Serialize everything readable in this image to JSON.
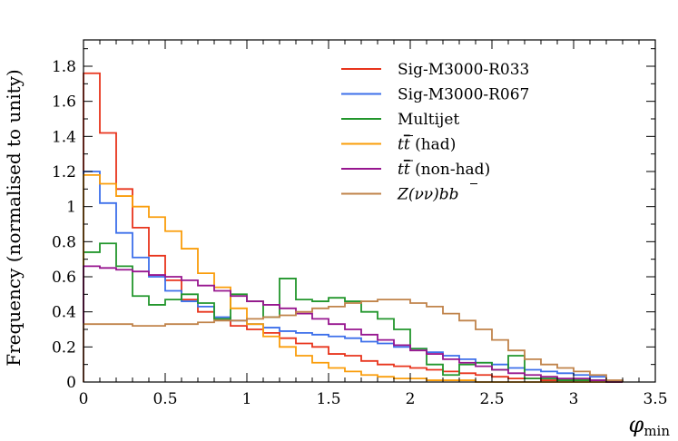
{
  "chart_data": {
    "type": "line",
    "step": true,
    "xlabel": "φ",
    "xlabel_sub": "min",
    "ylabel": "Frequency (normalised to unity)",
    "xlim": [
      0,
      3.5
    ],
    "ylim": [
      0,
      1.95
    ],
    "xticks": [
      0,
      0.5,
      1,
      1.5,
      2,
      2.5,
      3,
      3.5
    ],
    "xtick_labels": [
      "0",
      "0.5",
      "1",
      "1.5",
      "2",
      "2.5",
      "3",
      "3.5"
    ],
    "yticks": [
      0,
      0.2,
      0.4,
      0.6,
      0.8,
      1,
      1.2,
      1.4,
      1.6,
      1.8
    ],
    "ytick_labels": [
      "0",
      "0.2",
      "0.4",
      "0.6",
      "0.8",
      "1",
      "1.2",
      "1.4",
      "1.6",
      "1.8"
    ],
    "grid": false,
    "legend_position": "top-right",
    "bin_edges": [
      0,
      0.1,
      0.2,
      0.3,
      0.4,
      0.5,
      0.6,
      0.7,
      0.8,
      0.9,
      1.0,
      1.1,
      1.2,
      1.3,
      1.4,
      1.5,
      1.6,
      1.7,
      1.8,
      1.9,
      2.0,
      2.1,
      2.2,
      2.3,
      2.4,
      2.5,
      2.6,
      2.7,
      2.8,
      2.9,
      3.0,
      3.1,
      3.2,
      3.3
    ],
    "series": [
      {
        "name": "Sig-M3000-R033",
        "color": "#e8341c",
        "values": [
          1.76,
          1.42,
          1.1,
          0.88,
          0.72,
          0.58,
          0.47,
          0.4,
          0.36,
          0.32,
          0.3,
          0.28,
          0.25,
          0.22,
          0.2,
          0.16,
          0.15,
          0.12,
          0.1,
          0.09,
          0.08,
          0.07,
          0.06,
          0.05,
          0.04,
          0.03,
          0.02,
          0.02,
          0.01,
          0.01,
          0.01,
          0.01,
          0.0
        ]
      },
      {
        "name": "Sig-M3000-R067",
        "color": "#3c6fea",
        "values": [
          1.2,
          1.02,
          0.85,
          0.71,
          0.6,
          0.52,
          0.46,
          0.43,
          0.37,
          0.35,
          0.33,
          0.31,
          0.29,
          0.28,
          0.27,
          0.26,
          0.25,
          0.23,
          0.22,
          0.2,
          0.19,
          0.17,
          0.15,
          0.13,
          0.11,
          0.1,
          0.08,
          0.07,
          0.06,
          0.05,
          0.04,
          0.03,
          0.0
        ]
      },
      {
        "name": "Multijet",
        "color": "#22962c",
        "values": [
          0.74,
          0.79,
          0.66,
          0.49,
          0.44,
          0.47,
          0.5,
          0.45,
          0.36,
          0.5,
          0.46,
          0.37,
          0.59,
          0.47,
          0.46,
          0.48,
          0.46,
          0.4,
          0.36,
          0.3,
          0.19,
          0.1,
          0.04,
          0.1,
          0.11,
          0.07,
          0.15,
          0.02,
          0.02,
          0.01,
          0.01,
          0.01,
          0.0
        ]
      },
      {
        "name": "t̅t̅ (had)",
        "legend_parts": [
          "t",
          "t",
          " (had)"
        ],
        "color": "#fa9d0a",
        "values": [
          1.18,
          1.13,
          1.06,
          1.0,
          0.94,
          0.86,
          0.76,
          0.62,
          0.54,
          0.42,
          0.33,
          0.26,
          0.2,
          0.15,
          0.11,
          0.08,
          0.06,
          0.04,
          0.03,
          0.02,
          0.02,
          0.01,
          0.01,
          0.01,
          0.0,
          0.0,
          0.0,
          0.0,
          0.0,
          0.0,
          0.0,
          0.0,
          0.0
        ]
      },
      {
        "name": "t̅t̅ (non-had)",
        "legend_parts": [
          "t",
          "t",
          " (non-had)"
        ],
        "color": "#97168f",
        "values": [
          0.66,
          0.65,
          0.64,
          0.63,
          0.61,
          0.6,
          0.58,
          0.55,
          0.52,
          0.49,
          0.46,
          0.44,
          0.42,
          0.39,
          0.36,
          0.33,
          0.3,
          0.27,
          0.24,
          0.21,
          0.18,
          0.16,
          0.13,
          0.11,
          0.09,
          0.07,
          0.05,
          0.04,
          0.03,
          0.02,
          0.02,
          0.01,
          0.0
        ]
      },
      {
        "name": "Z(νν)bb̅",
        "legend_parts": [
          "Z",
          "(νν)",
          "b",
          "b"
        ],
        "color": "#c0834a",
        "values": [
          0.33,
          0.33,
          0.33,
          0.32,
          0.32,
          0.33,
          0.33,
          0.34,
          0.35,
          0.35,
          0.36,
          0.37,
          0.38,
          0.4,
          0.42,
          0.43,
          0.45,
          0.46,
          0.47,
          0.47,
          0.45,
          0.43,
          0.39,
          0.35,
          0.3,
          0.24,
          0.18,
          0.13,
          0.1,
          0.08,
          0.06,
          0.04,
          0.01
        ]
      }
    ]
  }
}
